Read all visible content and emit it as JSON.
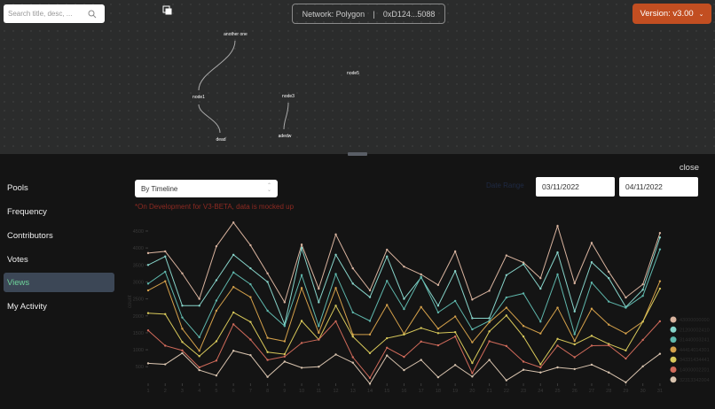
{
  "header": {
    "search_placeholder": "Search title, desc, ...",
    "network_label": "Network: Polygon",
    "separator": "|",
    "address": "0xD124...5088",
    "version": "Version: v3.00"
  },
  "graph": {
    "nodes": [
      {
        "label": "another one",
        "color": "#5fd3bf"
      },
      {
        "label": "node1",
        "color": "#5fd3bf"
      },
      {
        "label": "dead",
        "color": "#b57ff0"
      },
      {
        "label": "node3",
        "color": "#c86a78"
      },
      {
        "label": "adedw",
        "color": "#ec7b92"
      },
      {
        "label": "node5",
        "color": "#5fd3bf"
      }
    ]
  },
  "panel": {
    "close": "close",
    "sidebar": [
      {
        "label": "Pools"
      },
      {
        "label": "Frequency"
      },
      {
        "label": "Contributors"
      },
      {
        "label": "Votes"
      },
      {
        "label": "Views",
        "active": true
      },
      {
        "label": "My Activity"
      }
    ],
    "select_value": "By Timeline",
    "warning": "*On Development for V3-BETA, data is mocked up",
    "date_range_label": "Date Range",
    "date_from": "03/11/2022",
    "date_to": "04/11/2022"
  },
  "chart_data": {
    "type": "line",
    "ylabel": "count",
    "ylim": [
      0,
      4800
    ],
    "yticks": [
      500,
      1000,
      1500,
      2000,
      2500,
      3000,
      3500,
      4000,
      4500
    ],
    "x": [
      1,
      2,
      3,
      4,
      5,
      6,
      7,
      8,
      9,
      10,
      11,
      12,
      13,
      14,
      15,
      16,
      17,
      18,
      19,
      20,
      21,
      22,
      23,
      24,
      25,
      26,
      27,
      28,
      29,
      30,
      31
    ],
    "legend_position": "right",
    "series": [
      {
        "name": "43000000000",
        "color": "#d9b39e",
        "values": [
          3850,
          3900,
          3250,
          2500,
          4050,
          4750,
          4080,
          3250,
          2400,
          4100,
          2800,
          4400,
          3400,
          2750,
          3950,
          3450,
          3220,
          2910,
          3900,
          2480,
          2740,
          3780,
          3570,
          3110,
          4650,
          2960,
          4150,
          3300,
          2540,
          2930,
          4440
        ]
      },
      {
        "name": "21200002410",
        "color": "#86d3c9",
        "values": [
          3500,
          3750,
          2300,
          2300,
          3050,
          3800,
          3400,
          3000,
          1750,
          4000,
          2400,
          3800,
          2950,
          2550,
          3750,
          2500,
          3130,
          2300,
          3320,
          1930,
          1930,
          3200,
          3520,
          2800,
          3870,
          2130,
          3580,
          3110,
          2260,
          2770,
          4310
        ]
      },
      {
        "name": "31440003241",
        "color": "#5fb8ad",
        "values": [
          2950,
          3300,
          1950,
          1370,
          2450,
          3280,
          2930,
          2150,
          1700,
          3200,
          1700,
          3230,
          2100,
          1850,
          3030,
          2200,
          3150,
          2100,
          2440,
          1600,
          1850,
          2540,
          2660,
          1830,
          3220,
          1460,
          2980,
          2420,
          2240,
          2590,
          3960
        ]
      },
      {
        "name": "44414014301",
        "color": "#d4a04a",
        "values": [
          2750,
          3020,
          1620,
          970,
          2150,
          2850,
          2550,
          1350,
          1250,
          2820,
          1500,
          2820,
          1450,
          1450,
          2320,
          1470,
          2260,
          1620,
          1980,
          1220,
          1810,
          2240,
          1700,
          1480,
          2240,
          1260,
          2210,
          1740,
          1480,
          1830,
          3020
        ]
      },
      {
        "name": "34331434441",
        "color": "#d8c85a",
        "values": [
          2080,
          2050,
          1230,
          810,
          1250,
          2100,
          1820,
          930,
          870,
          1850,
          1300,
          2300,
          1390,
          900,
          1340,
          1450,
          1640,
          1490,
          1520,
          610,
          1540,
          2010,
          1390,
          570,
          1320,
          1160,
          1410,
          1170,
          980,
          1830,
          2800
        ]
      },
      {
        "name": "14000002201",
        "color": "#d06a5a",
        "values": [
          1570,
          1120,
          980,
          480,
          680,
          1750,
          1300,
          700,
          800,
          1200,
          1300,
          1840,
          780,
          170,
          1060,
          790,
          1240,
          1130,
          1390,
          310,
          1250,
          1110,
          650,
          480,
          1120,
          780,
          1120,
          1130,
          740,
          1290,
          1840
        ]
      },
      {
        "name": "32313342004",
        "color": "#d8c3ae",
        "values": [
          600,
          570,
          900,
          400,
          240,
          970,
          840,
          200,
          650,
          470,
          500,
          860,
          620,
          0,
          830,
          400,
          700,
          190,
          550,
          210,
          700,
          100,
          410,
          330,
          480,
          430,
          560,
          330,
          40,
          510,
          880
        ]
      }
    ]
  }
}
